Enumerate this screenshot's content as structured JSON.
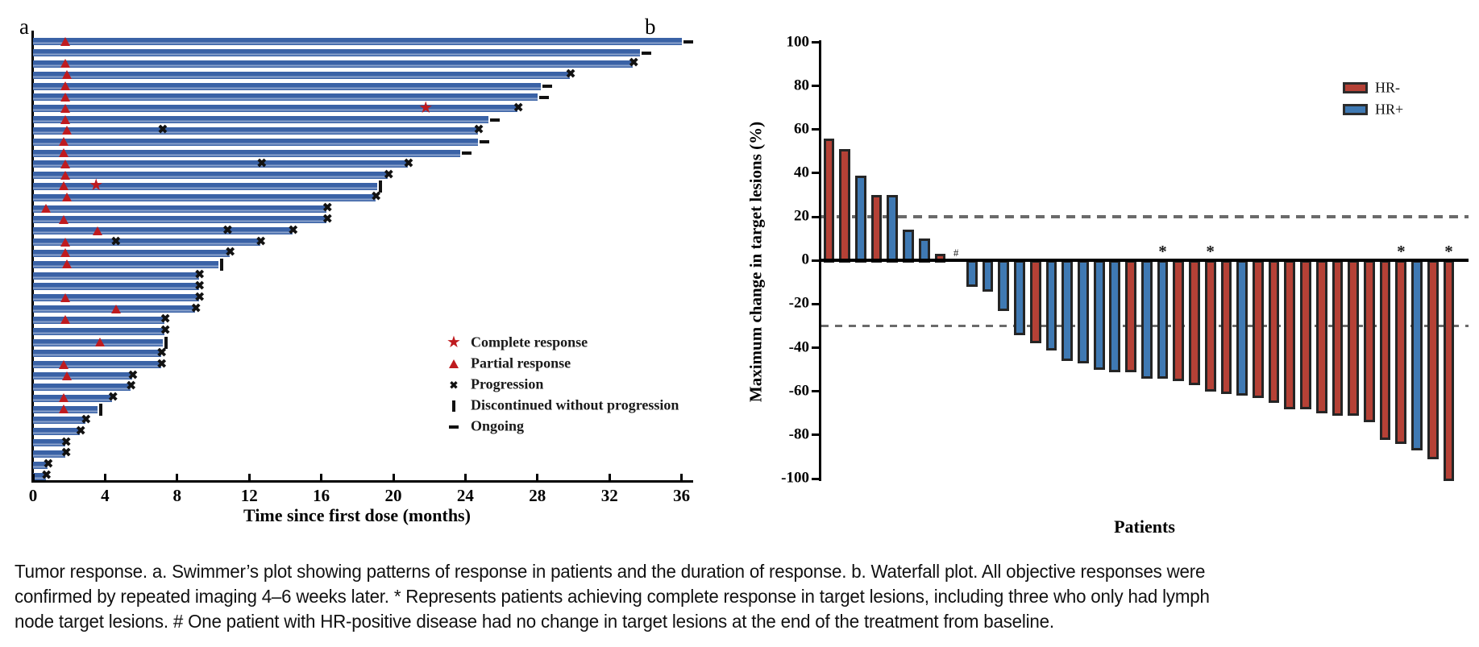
{
  "figure": {
    "panel_a_label": "a",
    "panel_b_label": "b",
    "caption_lines": [
      "Tumor response. a. Swimmer’s plot showing patterns of response in patients and the duration of response. b. Waterfall plot. All objective responses were",
      "confirmed by repeated imaging 4–6 weeks later. * Represents patients achieving complete response in target lesions, including three who only had lymph",
      "node target lesions. # One patient with HR-positive disease had no change in target lesions at the end of the treatment from baseline."
    ]
  },
  "chart_data": [
    {
      "type": "bar",
      "subtype": "swimmer",
      "xlabel": "Time since first dose (months)",
      "xticks": [
        0,
        4,
        8,
        12,
        16,
        20,
        24,
        28,
        32,
        36
      ],
      "xlim": [
        0,
        36.7
      ],
      "grid": false,
      "colors": {
        "bar": "#3a62a6",
        "bar_highlight": "#8aa2cc",
        "response_red": "#bf1b1f",
        "mark_black": "#121212"
      },
      "legend_position": "inside-right-bottom",
      "legend": [
        {
          "marker": "star",
          "label": "Complete response"
        },
        {
          "marker": "triangle",
          "label": "Partial response"
        },
        {
          "marker": "x",
          "label": "Progression"
        },
        {
          "marker": "bar",
          "label": "Discontinued without progression"
        },
        {
          "marker": "dash",
          "label": "Ongoing"
        }
      ],
      "patients": [
        {
          "bar": 36.0,
          "pr": 1.8,
          "end": "ongoing"
        },
        {
          "bar": 33.7,
          "end": "ongoing"
        },
        {
          "bar": 33.3,
          "pr": 1.8,
          "end": "progression"
        },
        {
          "bar": 29.8,
          "pr": 1.9,
          "end": "progression"
        },
        {
          "bar": 28.2,
          "pr": 1.8,
          "end": "ongoing"
        },
        {
          "bar": 28.0,
          "pr": 1.8,
          "end": "ongoing"
        },
        {
          "bar": 26.9,
          "pr": 1.8,
          "cr": 21.8,
          "end": "progression"
        },
        {
          "bar": 25.3,
          "pr": 1.8,
          "end": "ongoing"
        },
        {
          "bar": 24.7,
          "pr": 1.9,
          "prog": [
            7.2
          ],
          "end": "progression"
        },
        {
          "bar": 24.7,
          "pr": 1.7,
          "end": "ongoing"
        },
        {
          "bar": 23.7,
          "pr": 1.7,
          "end": "ongoing"
        },
        {
          "bar": 20.8,
          "pr": 1.8,
          "prog": [
            12.7
          ],
          "end": "progression"
        },
        {
          "bar": 19.7,
          "pr": 1.8,
          "end": "progression"
        },
        {
          "bar": 19.1,
          "pr": 1.7,
          "cr": 3.5,
          "end": "discontinued"
        },
        {
          "bar": 19.0,
          "pr": 1.9,
          "end": "progression"
        },
        {
          "bar": 16.3,
          "pr": 0.7,
          "end": "progression"
        },
        {
          "bar": 16.3,
          "pr": 1.7,
          "end": "progression"
        },
        {
          "bar": 14.4,
          "pr": 3.6,
          "prog": [
            10.8
          ],
          "end": "progression"
        },
        {
          "bar": 12.6,
          "pr": 1.8,
          "prog": [
            4.6
          ],
          "end": "progression"
        },
        {
          "bar": 10.9,
          "pr": 1.8,
          "end": "progression"
        },
        {
          "bar": 10.3,
          "pr": 1.9,
          "end": "discontinued"
        },
        {
          "bar": 9.2,
          "end": "progression"
        },
        {
          "bar": 9.2,
          "end": "progression"
        },
        {
          "bar": 9.2,
          "pr": 1.8,
          "end": "progression"
        },
        {
          "bar": 9.0,
          "pr": 4.6,
          "end": "progression"
        },
        {
          "bar": 7.3,
          "pr": 1.8,
          "end": "progression"
        },
        {
          "bar": 7.3,
          "end": "progression"
        },
        {
          "bar": 7.2,
          "pr": 3.7,
          "end": "discontinued"
        },
        {
          "bar": 7.1,
          "end": "progression"
        },
        {
          "bar": 7.1,
          "pr": 1.7,
          "end": "progression"
        },
        {
          "bar": 5.5,
          "pr": 1.9,
          "end": "progression"
        },
        {
          "bar": 5.4,
          "end": "progression"
        },
        {
          "bar": 4.4,
          "pr": 1.7,
          "end": "progression"
        },
        {
          "bar": 3.6,
          "pr": 1.7,
          "end": "discontinued"
        },
        {
          "bar": 2.9,
          "end": "progression"
        },
        {
          "bar": 2.6,
          "end": "progression"
        },
        {
          "bar": 1.8,
          "end": "progression"
        },
        {
          "bar": 1.8,
          "end": "progression"
        },
        {
          "bar": 0.8,
          "end": "progression"
        },
        {
          "bar": 0.7,
          "end": "progression"
        }
      ]
    },
    {
      "type": "bar",
      "subtype": "waterfall",
      "ylabel": "Maximum change in target lesions (%)",
      "xlabel": "Patients",
      "yticks": [
        100,
        80,
        60,
        40,
        20,
        0,
        -20,
        -40,
        -60,
        -80,
        -100
      ],
      "ylim": [
        -100,
        100
      ],
      "reference_lines": [
        20,
        -30
      ],
      "grid": false,
      "colors": {
        "HR-": "#b54136",
        "HR+": "#3f79b3",
        "outline": "#252525",
        "refline": "#6a6a6a"
      },
      "legend_position": "top-right",
      "legend": [
        {
          "label": "HR-",
          "color": "#b54136"
        },
        {
          "label": "HR+",
          "color": "#3f79b3"
        }
      ],
      "patients": [
        {
          "value": 56,
          "group": "HR-"
        },
        {
          "value": 51,
          "group": "HR-"
        },
        {
          "value": 39,
          "group": "HR+"
        },
        {
          "value": 30,
          "group": "HR-"
        },
        {
          "value": 30,
          "group": "HR+"
        },
        {
          "value": 14,
          "group": "HR+"
        },
        {
          "value": 10,
          "group": "HR+"
        },
        {
          "value": 3,
          "group": "HR-"
        },
        {
          "value": 0,
          "group": "HR+",
          "mark": "#"
        },
        {
          "value": -11,
          "group": "HR+"
        },
        {
          "value": -13,
          "group": "HR+"
        },
        {
          "value": -22,
          "group": "HR+"
        },
        {
          "value": -33,
          "group": "HR+"
        },
        {
          "value": -37,
          "group": "HR-"
        },
        {
          "value": -40,
          "group": "HR+"
        },
        {
          "value": -45,
          "group": "HR+"
        },
        {
          "value": -46,
          "group": "HR+"
        },
        {
          "value": -49,
          "group": "HR+"
        },
        {
          "value": -50,
          "group": "HR+"
        },
        {
          "value": -50,
          "group": "HR-"
        },
        {
          "value": -53,
          "group": "HR+"
        },
        {
          "value": -53,
          "group": "HR+",
          "mark": "*"
        },
        {
          "value": -54,
          "group": "HR-"
        },
        {
          "value": -56,
          "group": "HR-"
        },
        {
          "value": -59,
          "group": "HR-",
          "mark": "*"
        },
        {
          "value": -60,
          "group": "HR-"
        },
        {
          "value": -61,
          "group": "HR+"
        },
        {
          "value": -62,
          "group": "HR-"
        },
        {
          "value": -64,
          "group": "HR-"
        },
        {
          "value": -67,
          "group": "HR-"
        },
        {
          "value": -67,
          "group": "HR-"
        },
        {
          "value": -69,
          "group": "HR-"
        },
        {
          "value": -70,
          "group": "HR-"
        },
        {
          "value": -70,
          "group": "HR-"
        },
        {
          "value": -73,
          "group": "HR-"
        },
        {
          "value": -81,
          "group": "HR-"
        },
        {
          "value": -83,
          "group": "HR-",
          "mark": "*"
        },
        {
          "value": -86,
          "group": "HR+"
        },
        {
          "value": -90,
          "group": "HR-"
        },
        {
          "value": -100,
          "group": "HR-",
          "mark": "*"
        }
      ]
    }
  ]
}
